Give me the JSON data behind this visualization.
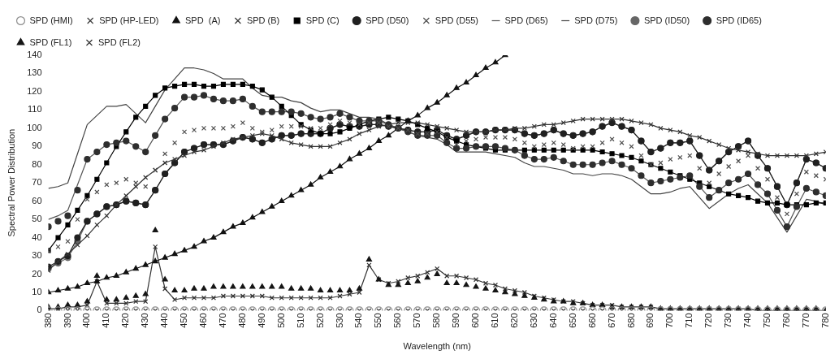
{
  "chart_data": {
    "type": "line",
    "xlabel": "Wavelength (nm)",
    "ylabel": "Spectral Power Distribution",
    "x": [
      380,
      385,
      390,
      395,
      400,
      405,
      410,
      415,
      420,
      425,
      430,
      435,
      440,
      445,
      450,
      455,
      460,
      465,
      470,
      475,
      480,
      485,
      490,
      495,
      500,
      505,
      510,
      515,
      520,
      525,
      530,
      535,
      540,
      545,
      550,
      555,
      560,
      565,
      570,
      575,
      580,
      585,
      590,
      595,
      600,
      605,
      610,
      615,
      620,
      625,
      630,
      635,
      640,
      645,
      650,
      655,
      660,
      665,
      670,
      675,
      680,
      685,
      690,
      695,
      700,
      705,
      710,
      715,
      720,
      725,
      730,
      735,
      740,
      745,
      750,
      755,
      760,
      765,
      770,
      775,
      780
    ],
    "xlim": [
      380,
      780
    ],
    "xticks": [
      380,
      390,
      400,
      410,
      420,
      430,
      440,
      450,
      460,
      470,
      480,
      490,
      500,
      510,
      520,
      530,
      540,
      550,
      560,
      570,
      580,
      590,
      600,
      610,
      620,
      630,
      640,
      650,
      660,
      670,
      680,
      690,
      700,
      710,
      720,
      730,
      740,
      750,
      760,
      770,
      780
    ],
    "ylim": [
      0,
      140
    ],
    "yticks": [
      0,
      10,
      20,
      30,
      40,
      50,
      60,
      70,
      80,
      90,
      100,
      110,
      120,
      130,
      140
    ],
    "grid": false,
    "legend": "top",
    "series": [
      {
        "name": "SPD (HMI)",
        "type": "scatter",
        "marker": "circle",
        "color": "#8c8c8c",
        "values": [
          0,
          0,
          0,
          0,
          0,
          0,
          0,
          0,
          0,
          0,
          0,
          0,
          0,
          0,
          0,
          0,
          0,
          0,
          0,
          0,
          0,
          0,
          0,
          0,
          0,
          0,
          0,
          0,
          0,
          0,
          0,
          0,
          0,
          0,
          0,
          0,
          0,
          0,
          0,
          0,
          0,
          0,
          0,
          0,
          0,
          0,
          0,
          0,
          0,
          0,
          0,
          0,
          0,
          0,
          0,
          0,
          0,
          0,
          0,
          0,
          0,
          0,
          0,
          0,
          0,
          0,
          0,
          0,
          0,
          0,
          0,
          0,
          0,
          0,
          0,
          0,
          0,
          0,
          0,
          0,
          0
        ]
      },
      {
        "name": "SPD (HP-LED)",
        "type": "scatter",
        "marker": "cross",
        "color": "#3a3a3a",
        "values": [
          0,
          0,
          0,
          0,
          0,
          0,
          0,
          0,
          0,
          0,
          0,
          0,
          0,
          0,
          0,
          0,
          0,
          0,
          0,
          0,
          0,
          0,
          0,
          0,
          0,
          0,
          0,
          0,
          0,
          0,
          0,
          0,
          0,
          0,
          0,
          0,
          0,
          0,
          0,
          0,
          0,
          0,
          0,
          0,
          0,
          0,
          0,
          0,
          0,
          0,
          0,
          0,
          0,
          0,
          0,
          0,
          0,
          0,
          0,
          0,
          0,
          0,
          0,
          0,
          0,
          0,
          0,
          0,
          0,
          0,
          0,
          0,
          0,
          0,
          0,
          0,
          0,
          0,
          0,
          0,
          0
        ]
      },
      {
        "name": "SPD  (A)",
        "type": "line",
        "marker": "triangle",
        "color": "#111111",
        "values": [
          10,
          11,
          12,
          13,
          15,
          16,
          18,
          19,
          21,
          23,
          25,
          27,
          29,
          31,
          33,
          35,
          38,
          40,
          43,
          46,
          48,
          51,
          54,
          57,
          60,
          63,
          66,
          69,
          73,
          76,
          79,
          83,
          86,
          89,
          93,
          96,
          100,
          104,
          107,
          111,
          114,
          118,
          122,
          125,
          129,
          133,
          136,
          140,
          null,
          null,
          null,
          null,
          null,
          null,
          null,
          null,
          null,
          null,
          null,
          null,
          null,
          null,
          null,
          null,
          null,
          null,
          null,
          null,
          null,
          null,
          null,
          null,
          null,
          null,
          null,
          null,
          null,
          null,
          null,
          null,
          null
        ]
      },
      {
        "name": "SPD (B)",
        "type": "line",
        "marker": "cross",
        "color": "#333333",
        "values": [
          22,
          27,
          31,
          36,
          41,
          47,
          52,
          58,
          63,
          68,
          73,
          77,
          81,
          83,
          85,
          87,
          88,
          90,
          92,
          94,
          95,
          96,
          97,
          96,
          94,
          92,
          91,
          90,
          90,
          90,
          92,
          94,
          97,
          99,
          101,
          102,
          103,
          103,
          103,
          102,
          101,
          100,
          99,
          98,
          98,
          98,
          99,
          99,
          100,
          100,
          101,
          102,
          102,
          103,
          104,
          105,
          105,
          105,
          105,
          105,
          104,
          103,
          102,
          100,
          99,
          98,
          96,
          95,
          93,
          91,
          89,
          88,
          87,
          86,
          85,
          85,
          85,
          85,
          85,
          86,
          87
        ]
      },
      {
        "name": "SPD (C)",
        "type": "line",
        "marker": "square",
        "color": "#000000",
        "values": [
          33,
          40,
          47,
          55,
          63,
          72,
          81,
          90,
          98,
          106,
          112,
          118,
          122,
          123,
          124,
          124,
          123,
          123,
          124,
          124,
          124,
          123,
          121,
          117,
          112,
          107,
          102,
          99,
          97,
          97,
          98,
          100,
          102,
          104,
          105,
          106,
          105,
          104,
          102,
          100,
          98,
          95,
          93,
          91,
          90,
          89,
          88,
          88,
          88,
          88,
          88,
          88,
          88,
          88,
          88,
          88,
          88,
          87,
          86,
          85,
          84,
          82,
          80,
          78,
          76,
          74,
          72,
          70,
          68,
          66,
          64,
          63,
          62,
          60,
          59,
          59,
          58,
          58,
          58,
          59,
          59
        ]
      },
      {
        "name": "SPD (D50)",
        "type": "line",
        "marker": "circle",
        "color": "#202020",
        "values": [
          24,
          27,
          30,
          40,
          49,
          53,
          57,
          58,
          60,
          59,
          58,
          66,
          75,
          81,
          87,
          89,
          91,
          91,
          91,
          93,
          95,
          94,
          92,
          94,
          96,
          96,
          97,
          97,
          97,
          100,
          102,
          101,
          101,
          102,
          102,
          101,
          100,
          99,
          98,
          98,
          99,
          96,
          94,
          96,
          98,
          98,
          99,
          99,
          99,
          97,
          96,
          97,
          99,
          97,
          96,
          97,
          98,
          101,
          103,
          101,
          99,
          93,
          87,
          89,
          92,
          92,
          93,
          85,
          77,
          82,
          87,
          90,
          93,
          85,
          78,
          68,
          58,
          70,
          83,
          81,
          78
        ]
      },
      {
        "name": "SPD (D55)",
        "type": "scatter",
        "marker": "cross",
        "color": "#4d4d4d",
        "values": [
          33,
          35,
          38,
          50,
          61,
          65,
          69,
          70,
          72,
          70,
          68,
          77,
          86,
          92,
          98,
          99,
          100,
          100,
          100,
          101,
          103,
          100,
          98,
          99,
          101,
          101,
          101,
          100,
          100,
          102,
          104,
          103,
          102,
          103,
          103,
          101,
          100,
          99,
          97,
          97,
          98,
          95,
          91,
          93,
          94,
          95,
          95,
          95,
          94,
          92,
          90,
          91,
          92,
          91,
          89,
          90,
          90,
          92,
          94,
          92,
          90,
          85,
          80,
          81,
          83,
          84,
          85,
          78,
          70,
          75,
          79,
          82,
          85,
          78,
          72,
          62,
          53,
          64,
          76,
          74,
          72
        ]
      },
      {
        "name": "SPD (D65)",
        "type": "line",
        "marker": "none",
        "color": "#555555",
        "values": [
          50,
          52,
          55,
          69,
          83,
          87,
          91,
          92,
          93,
          90,
          87,
          96,
          105,
          111,
          117,
          117,
          118,
          116,
          115,
          115,
          116,
          112,
          109,
          109,
          109,
          109,
          108,
          106,
          105,
          106,
          108,
          106,
          104,
          104,
          104,
          102,
          100,
          98,
          96,
          96,
          96,
          92,
          89,
          89,
          90,
          90,
          90,
          89,
          88,
          85,
          83,
          83,
          84,
          82,
          80,
          80,
          80,
          81,
          82,
          80,
          78,
          74,
          70,
          71,
          72,
          73,
          74,
          68,
          62,
          66,
          70,
          72,
          75,
          69,
          64,
          55,
          46,
          57,
          67,
          65,
          63
        ]
      },
      {
        "name": "SPD (D75)",
        "type": "line",
        "marker": "none",
        "color": "#444444",
        "values": [
          67,
          68,
          70,
          86,
          102,
          107,
          112,
          112,
          113,
          108,
          103,
          112,
          121,
          127,
          133,
          133,
          132,
          130,
          127,
          127,
          127,
          122,
          118,
          117,
          117,
          115,
          114,
          111,
          109,
          110,
          110,
          108,
          106,
          106,
          105,
          102,
          100,
          98,
          96,
          95,
          94,
          91,
          87,
          87,
          87,
          87,
          86,
          85,
          84,
          81,
          79,
          79,
          78,
          77,
          75,
          75,
          74,
          75,
          75,
          74,
          72,
          68,
          64,
          64,
          65,
          67,
          68,
          62,
          56,
          60,
          64,
          67,
          69,
          64,
          59,
          51,
          43,
          52,
          61,
          60,
          58
        ]
      },
      {
        "name": "SPD (ID50)",
        "type": "line",
        "marker": "circle",
        "color": "#666666",
        "values": [
          23,
          26,
          29,
          38,
          49,
          53,
          57,
          58,
          60,
          59,
          58,
          66,
          75,
          81,
          87,
          89,
          91,
          91,
          91,
          93,
          95,
          94,
          92,
          94,
          96,
          96,
          97,
          97,
          97,
          100,
          102,
          101,
          101,
          102,
          102,
          101,
          100,
          99,
          98,
          98,
          99,
          96,
          94,
          96,
          98,
          98,
          99,
          99,
          99,
          97,
          96,
          97,
          99,
          97,
          96,
          97,
          98,
          101,
          103,
          101,
          99,
          93,
          87,
          89,
          92,
          92,
          93,
          85,
          77,
          82,
          87,
          90,
          93,
          85,
          78,
          68,
          58,
          70,
          83,
          81,
          78
        ]
      },
      {
        "name": "SPD (ID65)",
        "type": "scatter",
        "marker": "circle",
        "color": "#2e2e2e",
        "values": [
          46,
          49,
          52,
          66,
          83,
          87,
          91,
          92,
          93,
          90,
          87,
          96,
          105,
          111,
          117,
          117,
          118,
          116,
          115,
          115,
          116,
          112,
          109,
          109,
          109,
          109,
          108,
          106,
          105,
          106,
          108,
          106,
          104,
          104,
          104,
          102,
          100,
          98,
          96,
          96,
          96,
          92,
          89,
          89,
          90,
          90,
          90,
          89,
          88,
          85,
          83,
          83,
          84,
          82,
          80,
          80,
          80,
          81,
          82,
          80,
          78,
          74,
          70,
          71,
          72,
          73,
          74,
          68,
          62,
          66,
          70,
          72,
          75,
          69,
          64,
          55,
          46,
          57,
          67,
          65,
          63
        ]
      },
      {
        "name": "SPD (FL1)",
        "type": "scatter",
        "marker": "triangle",
        "color": "#151515",
        "values": [
          2,
          2,
          3,
          3,
          5,
          19,
          6,
          6,
          7,
          8,
          9,
          44,
          17,
          11,
          11,
          12,
          12,
          13,
          13,
          13,
          13,
          13,
          13,
          13,
          13,
          12,
          12,
          12,
          11,
          11,
          11,
          11,
          12,
          28,
          17,
          14,
          14,
          15,
          16,
          18,
          20,
          15,
          15,
          14,
          13,
          12,
          11,
          10,
          9,
          8,
          7,
          6,
          5,
          5,
          4,
          4,
          3,
          3,
          2,
          2,
          2,
          2,
          2,
          1,
          1,
          1,
          1,
          1,
          1,
          1,
          1,
          1,
          1,
          1,
          1,
          1,
          1,
          1,
          1,
          1,
          0
        ]
      },
      {
        "name": "SPD (FL2)",
        "type": "line",
        "marker": "cross",
        "color": "#333333",
        "values": [
          1,
          1,
          2,
          2,
          3,
          16,
          4,
          4,
          4,
          5,
          5,
          35,
          12,
          6,
          7,
          7,
          7,
          7,
          8,
          8,
          8,
          8,
          8,
          7,
          7,
          7,
          7,
          7,
          7,
          7,
          8,
          9,
          10,
          25,
          17,
          15,
          16,
          18,
          19,
          21,
          23,
          19,
          19,
          18,
          17,
          15,
          14,
          12,
          11,
          10,
          8,
          7,
          6,
          5,
          5,
          4,
          3,
          3,
          3,
          2,
          2,
          2,
          2,
          1,
          1,
          1,
          1,
          1,
          1,
          1,
          1,
          1,
          1,
          0,
          0,
          0,
          0,
          0,
          0,
          0,
          0
        ]
      }
    ]
  }
}
